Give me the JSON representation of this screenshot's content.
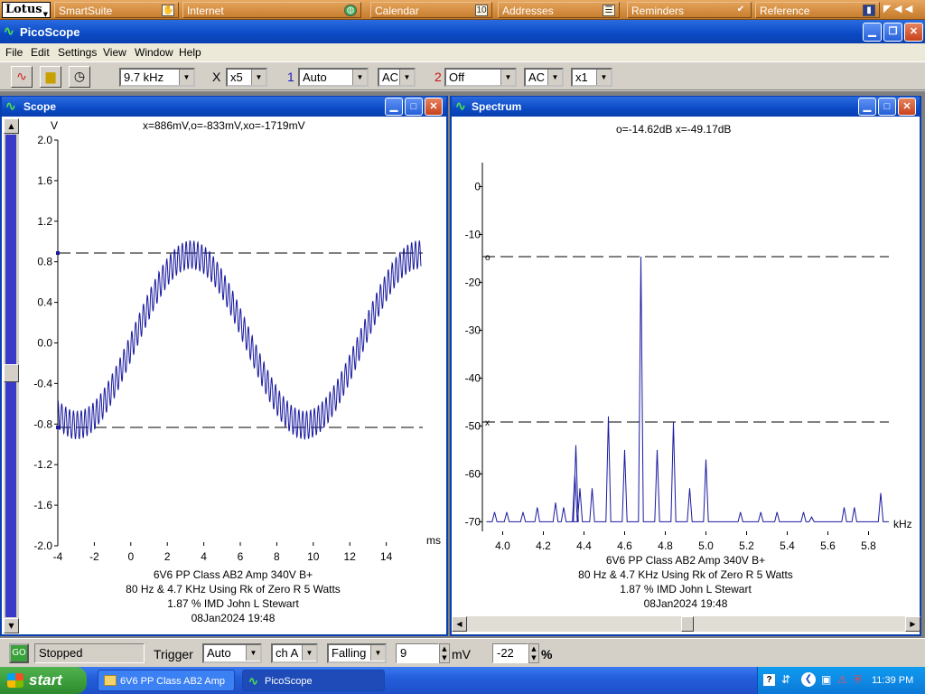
{
  "lotus_bar": {
    "logo": "Lotus",
    "items": [
      {
        "label": "SmartSuite",
        "icon": "suite-icon"
      },
      {
        "label": "Internet",
        "icon": "globe-icon"
      },
      {
        "label": "Calendar",
        "icon": "calendar-icon"
      },
      {
        "label": "Addresses",
        "icon": "addressbook-icon"
      },
      {
        "label": "Reminders",
        "icon": "checkmark-icon"
      },
      {
        "label": "Reference",
        "icon": "book-icon"
      }
    ]
  },
  "window": {
    "title": "PicoScope"
  },
  "menu": [
    "File",
    "Edit",
    "Settings",
    "View",
    "Window",
    "Help"
  ],
  "toolbar": {
    "timebase": "9.7 kHz",
    "multiplier_label": "X",
    "multiplier": "x5",
    "ch1_label": "1",
    "ch1_range": "Auto",
    "ch1_coupling": "AC",
    "ch2_label": "2",
    "ch2_range": "Off",
    "ch2_coupling": "AC",
    "ch2_gain": "x1"
  },
  "scope": {
    "title": "Scope",
    "readout": "x=886mV,o=-833mV,xo=-1719mV",
    "caption": [
      "6V6 PP Class AB2 Amp 340V B+",
      "80 Hz & 4.7 KHz Using Rk of Zero R 5 Watts",
      "1.87 % IMD John L Stewart",
      "08Jan2024  19:48"
    ]
  },
  "spectrum": {
    "title": "Spectrum",
    "readout": "o=-14.62dB  x=-49.17dB",
    "caption": [
      "6V6 PP Class AB2 Amp 340V B+",
      "80 Hz & 4.7 KHz Using Rk of Zero R 5 Watts",
      "1.87 % IMD John L Stewart",
      "08Jan2024  19:48"
    ]
  },
  "chart_data": [
    {
      "type": "line",
      "title": "",
      "xlabel": "ms",
      "ylabel": "V",
      "xlim": [
        -4,
        16
      ],
      "ylim": [
        -2.0,
        2.0
      ],
      "x_ticks": [
        "-4",
        "-2",
        "0",
        "2",
        "4",
        "6",
        "8",
        "10",
        "12",
        "14"
      ],
      "y_ticks": [
        "2.0",
        "1.6",
        "1.2",
        "0.8",
        "0.4",
        "0.0",
        "-0.4",
        "-0.8",
        "-1.2",
        "-1.6",
        "-2.0"
      ],
      "grid": false,
      "color": "#1a1aa0",
      "sine": {
        "amplitude": 0.84,
        "offset": 0.03,
        "period_ms": 12.5,
        "peak_ms": 3.3
      },
      "ripple": {
        "amplitude": 0.14,
        "period_ms": 0.213
      },
      "cursors": [
        {
          "label": "x",
          "value": 0.886
        },
        {
          "label": "o",
          "value": -0.833
        }
      ]
    },
    {
      "type": "line",
      "title": "",
      "xlabel": "kHz",
      "ylabel": "",
      "xlim": [
        3.9,
        5.9
      ],
      "ylim": [
        -72,
        5
      ],
      "x_ticks": [
        "4.0",
        "4.2",
        "4.4",
        "4.6",
        "4.8",
        "5.0",
        "5.2",
        "5.4",
        "5.6",
        "5.8"
      ],
      "y_ticks": [
        "0",
        "-10",
        "-20",
        "-30",
        "-40",
        "-50",
        "-60",
        "-70"
      ],
      "grid": false,
      "color": "#1a1aa0",
      "floor": -70,
      "peaks": [
        {
          "x": 3.96,
          "y": -68
        },
        {
          "x": 4.02,
          "y": -68
        },
        {
          "x": 4.1,
          "y": -68
        },
        {
          "x": 4.17,
          "y": -67
        },
        {
          "x": 4.26,
          "y": -66
        },
        {
          "x": 4.3,
          "y": -67
        },
        {
          "x": 4.355,
          "y": -60
        },
        {
          "x": 4.36,
          "y": -54
        },
        {
          "x": 4.38,
          "y": -63
        },
        {
          "x": 4.44,
          "y": -63
        },
        {
          "x": 4.52,
          "y": -48
        },
        {
          "x": 4.6,
          "y": -55
        },
        {
          "x": 4.68,
          "y": -14.62
        },
        {
          "x": 4.76,
          "y": -55
        },
        {
          "x": 4.84,
          "y": -49.17
        },
        {
          "x": 4.92,
          "y": -63
        },
        {
          "x": 5.0,
          "y": -57
        },
        {
          "x": 5.17,
          "y": -68
        },
        {
          "x": 5.27,
          "y": -68
        },
        {
          "x": 5.35,
          "y": -68
        },
        {
          "x": 5.48,
          "y": -68
        },
        {
          "x": 5.52,
          "y": -69
        },
        {
          "x": 5.68,
          "y": -67
        },
        {
          "x": 5.73,
          "y": -67
        },
        {
          "x": 5.86,
          "y": -64
        }
      ],
      "cursors": [
        {
          "label": "o",
          "value": -14.62
        },
        {
          "label": "x",
          "value": -49.17
        }
      ]
    }
  ],
  "status": {
    "state": "Stopped",
    "trigger_label": "Trigger",
    "trigger_mode": "Auto",
    "trigger_channel": "ch A",
    "trigger_edge": "Falling",
    "trigger_level": "9",
    "level_unit": "mV",
    "pretrigger": "-22",
    "pretrigger_unit": "%"
  },
  "taskbar": {
    "start": "start",
    "tasks": [
      {
        "label": "6V6 PP Class AB2 Amp"
      },
      {
        "label": "PicoScope"
      }
    ],
    "clock": "11:39 PM"
  }
}
